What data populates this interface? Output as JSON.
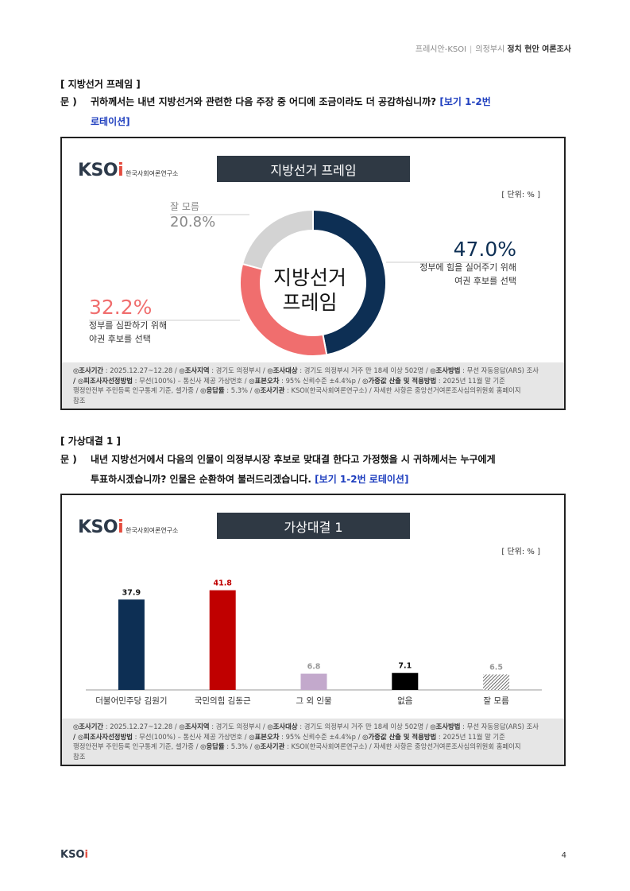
{
  "header": {
    "org": "프레시안-KSOI",
    "region": "의정부시",
    "title": "정치 현안 여론조사"
  },
  "section1": {
    "heading": "[ 지방선거 프레임 ]",
    "q_mark": "문 )",
    "q_text_line1": "귀하께서는 내년 지방선거와 관련한 다음 주장 중 어디에 조금이라도 더 공감하십니까?",
    "q_rot_line1": "[보기 1-2번",
    "q_rot_line2": "로테이션]",
    "chart_title": "지방선거 프레임",
    "unit": "[ 단위: % ]",
    "center_line1": "지방선거",
    "center_line2": "프레임"
  },
  "section2": {
    "heading": "[ 가상대결 1 ]",
    "q_mark": "문 )",
    "q_text_line1": "내년 지방선거에서 다음의 인물이 의정부시장 후보로 맞대결 한다고 가정했을 시 귀하께서는 누구에게",
    "q_text_line2": "투표하시겠습니까? 인물은 순환하여 불러드리겠습니다.",
    "q_rot": "[보기 1-2번 로테이션]",
    "chart_title": "가상대결 1",
    "unit": "[ 단위: % ]"
  },
  "logo": {
    "word_main": "KSO",
    "word_dot": "i",
    "org_name": "한국사회여론연구소"
  },
  "footnote": {
    "l1_a": "◎조사기간",
    "l1_av": " : 2025.12.27~12.28 / ",
    "l1_b": "◎조사지역",
    "l1_bv": " : 경기도 의정부시 / ",
    "l1_c": "◎조사대상",
    "l1_cv": " : 경기도 의정부시 거주 만 18세 이상 502명 / ",
    "l1_d": "◎조사방법",
    "l1_dv": " : 무선 자동응답(ARS) 조사",
    "l2_a": "/ ◎피조사자선정방법",
    "l2_av": " : 무선(100%) – 통신사 제공 가상번호 / ",
    "l2_b": "◎표본오차",
    "l2_bv": " : 95% 신뢰수준 ±4.4%p / ",
    "l2_c": "◎가중값 산출 및 적용방법",
    "l2_cv": " : 2025년 11월 말 기준",
    "l3_a": "행정안전부 주민등록 인구통계 기준, 셀가중 / ",
    "l3_b": "◎응답률",
    "l3_bv": " : 5.3% / ",
    "l3_c": "◎조사기관",
    "l3_cv": " : KSOI(한국사회여론연구소) / 자세한 사항은 중앙선거여론조사심의위원회 홈페이지",
    "l4": "참조"
  },
  "page_number": "4",
  "chart_data": [
    {
      "type": "pie",
      "title": "지방선거 프레임",
      "center_label": "지방선거 프레임",
      "slices": [
        {
          "label_line1": "정부에 힘을 실어주기 위해",
          "label_line2": "여권 후보를 선택",
          "value": 47.0,
          "value_label": "47.0%",
          "color": "#0d2f54"
        },
        {
          "label_line1": "정부를 심판하기 위해",
          "label_line2": "야권 후보를 선택",
          "value": 32.2,
          "value_label": "32.2%",
          "color": "#f06e6e"
        },
        {
          "label_line1": "잘 모름",
          "label_line2": "",
          "value": 20.8,
          "value_label": "20.8%",
          "color": "#d3d3d3"
        }
      ]
    },
    {
      "type": "bar",
      "title": "가상대결 1",
      "categories": [
        "더불어민주당 김원기",
        "국민의힘 김동근",
        "그 외 인물",
        "없음",
        "잘 모름"
      ],
      "values": [
        37.9,
        41.8,
        6.8,
        7.1,
        6.5
      ],
      "value_labels": [
        "37.9",
        "41.8",
        "6.8",
        "7.1",
        "6.5"
      ],
      "colors": [
        "#0d2f54",
        "#c00000",
        "#c3a9cc",
        "#000000",
        "hatch"
      ],
      "ylim": [
        0,
        45
      ]
    }
  ]
}
